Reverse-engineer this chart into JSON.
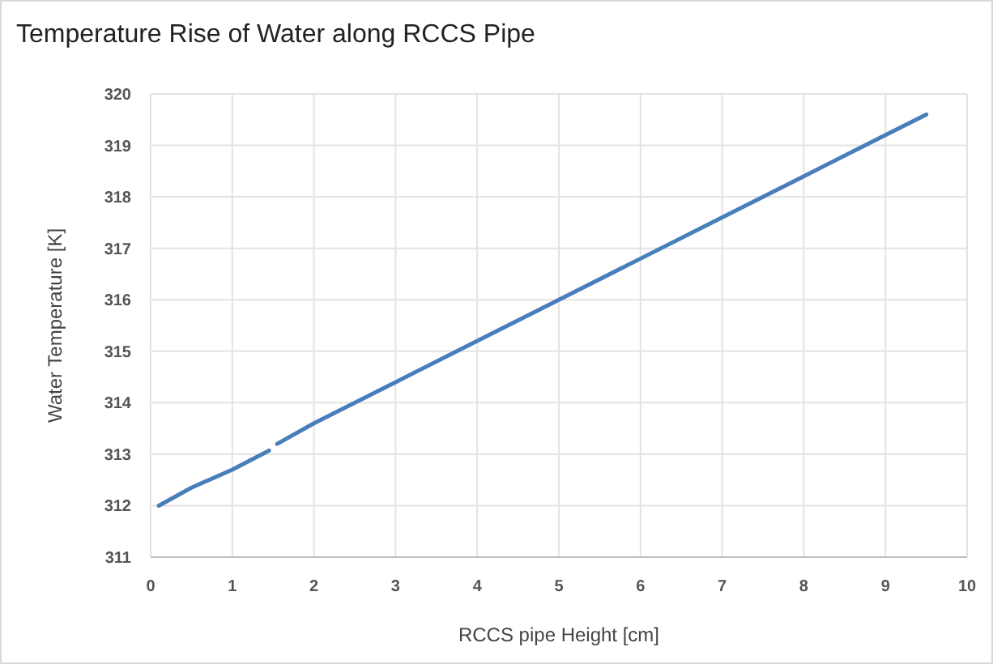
{
  "chart_data": {
    "type": "line",
    "title": "Temperature Rise of Water along RCCS Pipe",
    "xlabel": "RCCS pipe Height [cm]",
    "ylabel": "Water Temperature [K]",
    "series": [
      {
        "color": "#4a7ebb",
        "x": [
          0.1,
          0.5,
          1,
          1.45,
          1.5,
          1.55,
          2,
          3,
          4,
          5,
          6,
          7,
          8,
          9,
          9.5
        ],
        "values": [
          312.0,
          312.35,
          312.7,
          313.07,
          null,
          313.2,
          313.6,
          314.4,
          315.2,
          316.0,
          316.8,
          317.6,
          318.4,
          319.2,
          319.6
        ]
      }
    ],
    "xlim": [
      0,
      10
    ],
    "xticks": [
      0,
      1,
      2,
      3,
      4,
      5,
      6,
      7,
      8,
      9,
      10
    ],
    "ylim": [
      311,
      320
    ],
    "yticks": [
      311,
      312,
      313,
      314,
      315,
      316,
      317,
      318,
      319,
      320
    ],
    "grid": true,
    "line_style": "solid"
  }
}
